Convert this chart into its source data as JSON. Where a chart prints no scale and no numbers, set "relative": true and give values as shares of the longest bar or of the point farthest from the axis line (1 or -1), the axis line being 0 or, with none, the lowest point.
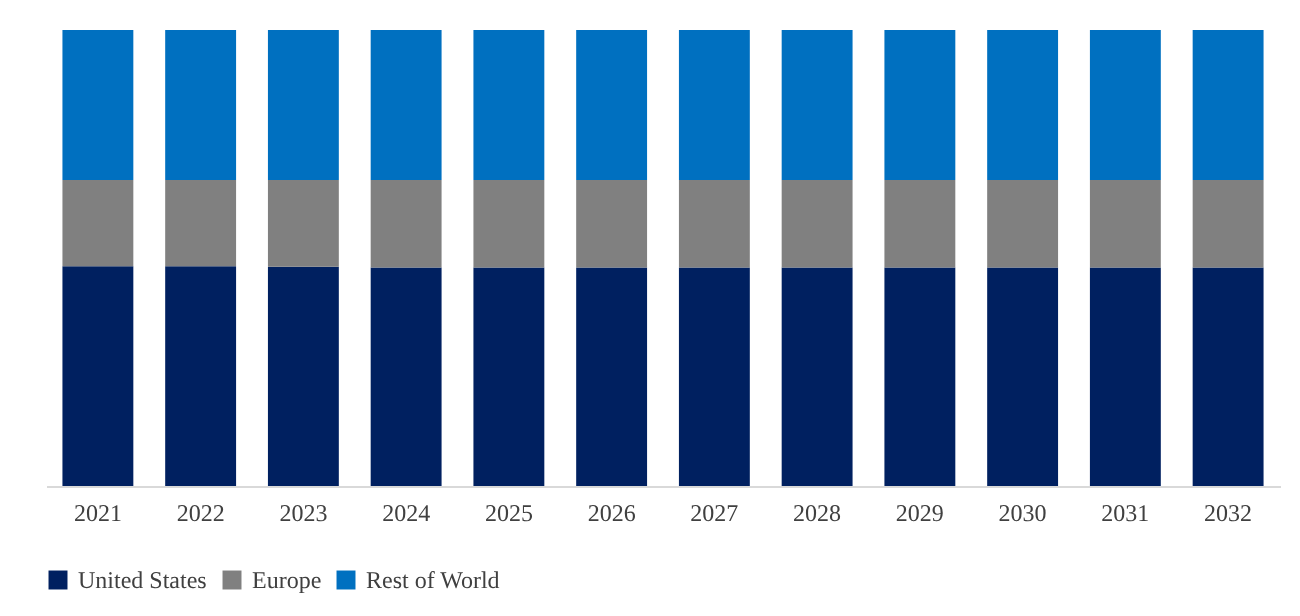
{
  "chart_data": {
    "type": "bar",
    "stacked": true,
    "relative": true,
    "legend": "bottom",
    "grid": false,
    "categories": [
      "2021",
      "2022",
      "2023",
      "2024",
      "2025",
      "2026",
      "2027",
      "2028",
      "2029",
      "2030",
      "2031",
      "2032"
    ],
    "series": [
      {
        "name": "United States",
        "color": "#002060",
        "values": [
          0.482,
          0.482,
          0.481,
          0.479,
          0.479,
          0.479,
          0.479,
          0.479,
          0.479,
          0.479,
          0.479,
          0.479
        ]
      },
      {
        "name": "Europe",
        "color": "#808080",
        "values": [
          0.189,
          0.189,
          0.19,
          0.192,
          0.192,
          0.192,
          0.192,
          0.192,
          0.192,
          0.192,
          0.192,
          0.192
        ]
      },
      {
        "name": "Rest of World",
        "color": "#0070c0",
        "values": [
          0.329,
          0.329,
          0.329,
          0.329,
          0.329,
          0.329,
          0.329,
          0.329,
          0.329,
          0.329,
          0.329,
          0.329
        ]
      }
    ]
  }
}
